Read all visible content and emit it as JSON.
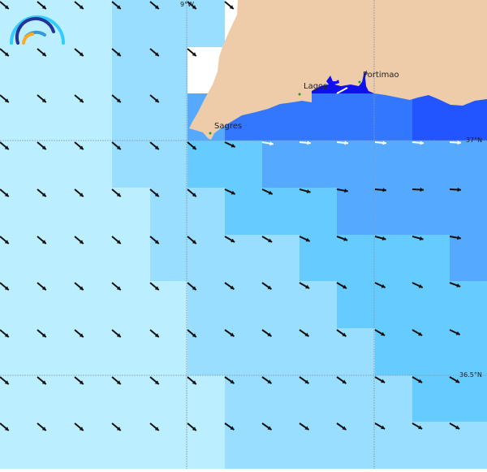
{
  "map": {
    "palette": {
      "A": "#bbeeff",
      "B": "#99ddff",
      "C": "#66ccff",
      "D": "#55aaff",
      "E": "#3377ff",
      "F": "#2255ff",
      "W": "#ffffff",
      "G": "#1010ee",
      "land": "#eeccaa",
      "grid": "#8899aa",
      "arrow": "#111111",
      "arrow_light": "#ffffff"
    },
    "cells": [
      "AAABBBWWWWWWW",
      "AAABBWWWWWWWW",
      "AAABBDEEEEEFF",
      "AAABBCCDDDDDD",
      "AAAABBCCCDDDD",
      "AAAABBBBCCCCD",
      "AAAAABBBBCCCC",
      "AAAAABBBBBCCC",
      "AAAAAABBBBBCC",
      "AAAAAABBBBBBB"
    ],
    "wind_direction_deg": [
      [
        40,
        40,
        40,
        40,
        40,
        40,
        40,
        null,
        null,
        null,
        null,
        null,
        null
      ],
      [
        40,
        40,
        40,
        40,
        40,
        40,
        null,
        null,
        null,
        null,
        null,
        null,
        null
      ],
      [
        40,
        40,
        40,
        40,
        40,
        null,
        null,
        null,
        null,
        null,
        null,
        null,
        null
      ],
      [
        40,
        40,
        40,
        40,
        40,
        40,
        25,
        10,
        5,
        5,
        5,
        5,
        3
      ],
      [
        40,
        40,
        40,
        40,
        40,
        40,
        25,
        25,
        15,
        10,
        5,
        3,
        3
      ],
      [
        40,
        40,
        40,
        40,
        40,
        40,
        30,
        30,
        25,
        20,
        15,
        15,
        10
      ],
      [
        40,
        40,
        40,
        40,
        40,
        40,
        35,
        35,
        30,
        30,
        25,
        25,
        20
      ],
      [
        40,
        40,
        40,
        40,
        40,
        40,
        35,
        35,
        35,
        35,
        30,
        30,
        25
      ],
      [
        40,
        40,
        40,
        40,
        40,
        40,
        35,
        35,
        35,
        35,
        30,
        30,
        30
      ],
      [
        40,
        40,
        40,
        40,
        40,
        40,
        35,
        35,
        35,
        35,
        30,
        30,
        30
      ]
    ],
    "light_arrows_row": 3,
    "places": [
      {
        "name": "Sagres"
      },
      {
        "name": "Lagos"
      },
      {
        "name": "Portimao"
      }
    ],
    "grid_labels": {
      "lon": "9°W",
      "lat1": "37°N",
      "lat2": "36.5°N"
    },
    "logo_colors": [
      "#33ccff",
      "#223399",
      "#3399dd",
      "#ffaa22"
    ]
  }
}
